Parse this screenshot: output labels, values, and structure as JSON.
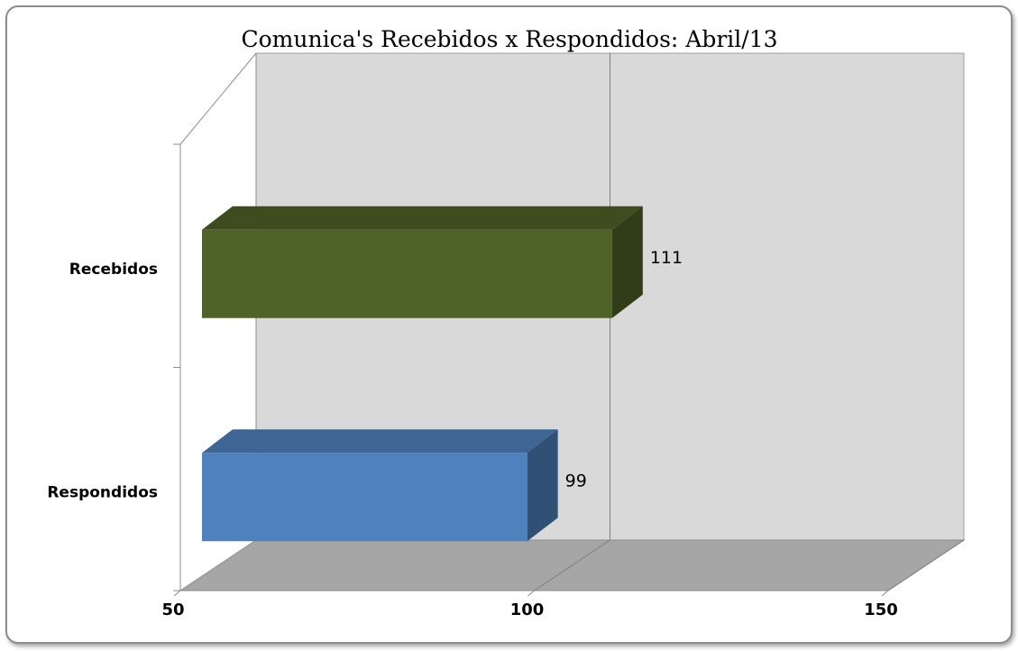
{
  "chart_data": {
    "type": "bar",
    "orientation": "horizontal",
    "three_d": true,
    "title": "Comunica's Recebidos x Respondidos:  Abril/13",
    "categories": [
      "Recebidos",
      "Respondidos"
    ],
    "values": [
      111,
      99
    ],
    "data_labels": [
      "111",
      "99"
    ],
    "colors": [
      "#4f6228",
      "#4f81bd"
    ],
    "xlim": [
      50,
      150
    ],
    "xticks": [
      "50",
      "100",
      "150"
    ],
    "grid": true,
    "legend": "none"
  }
}
